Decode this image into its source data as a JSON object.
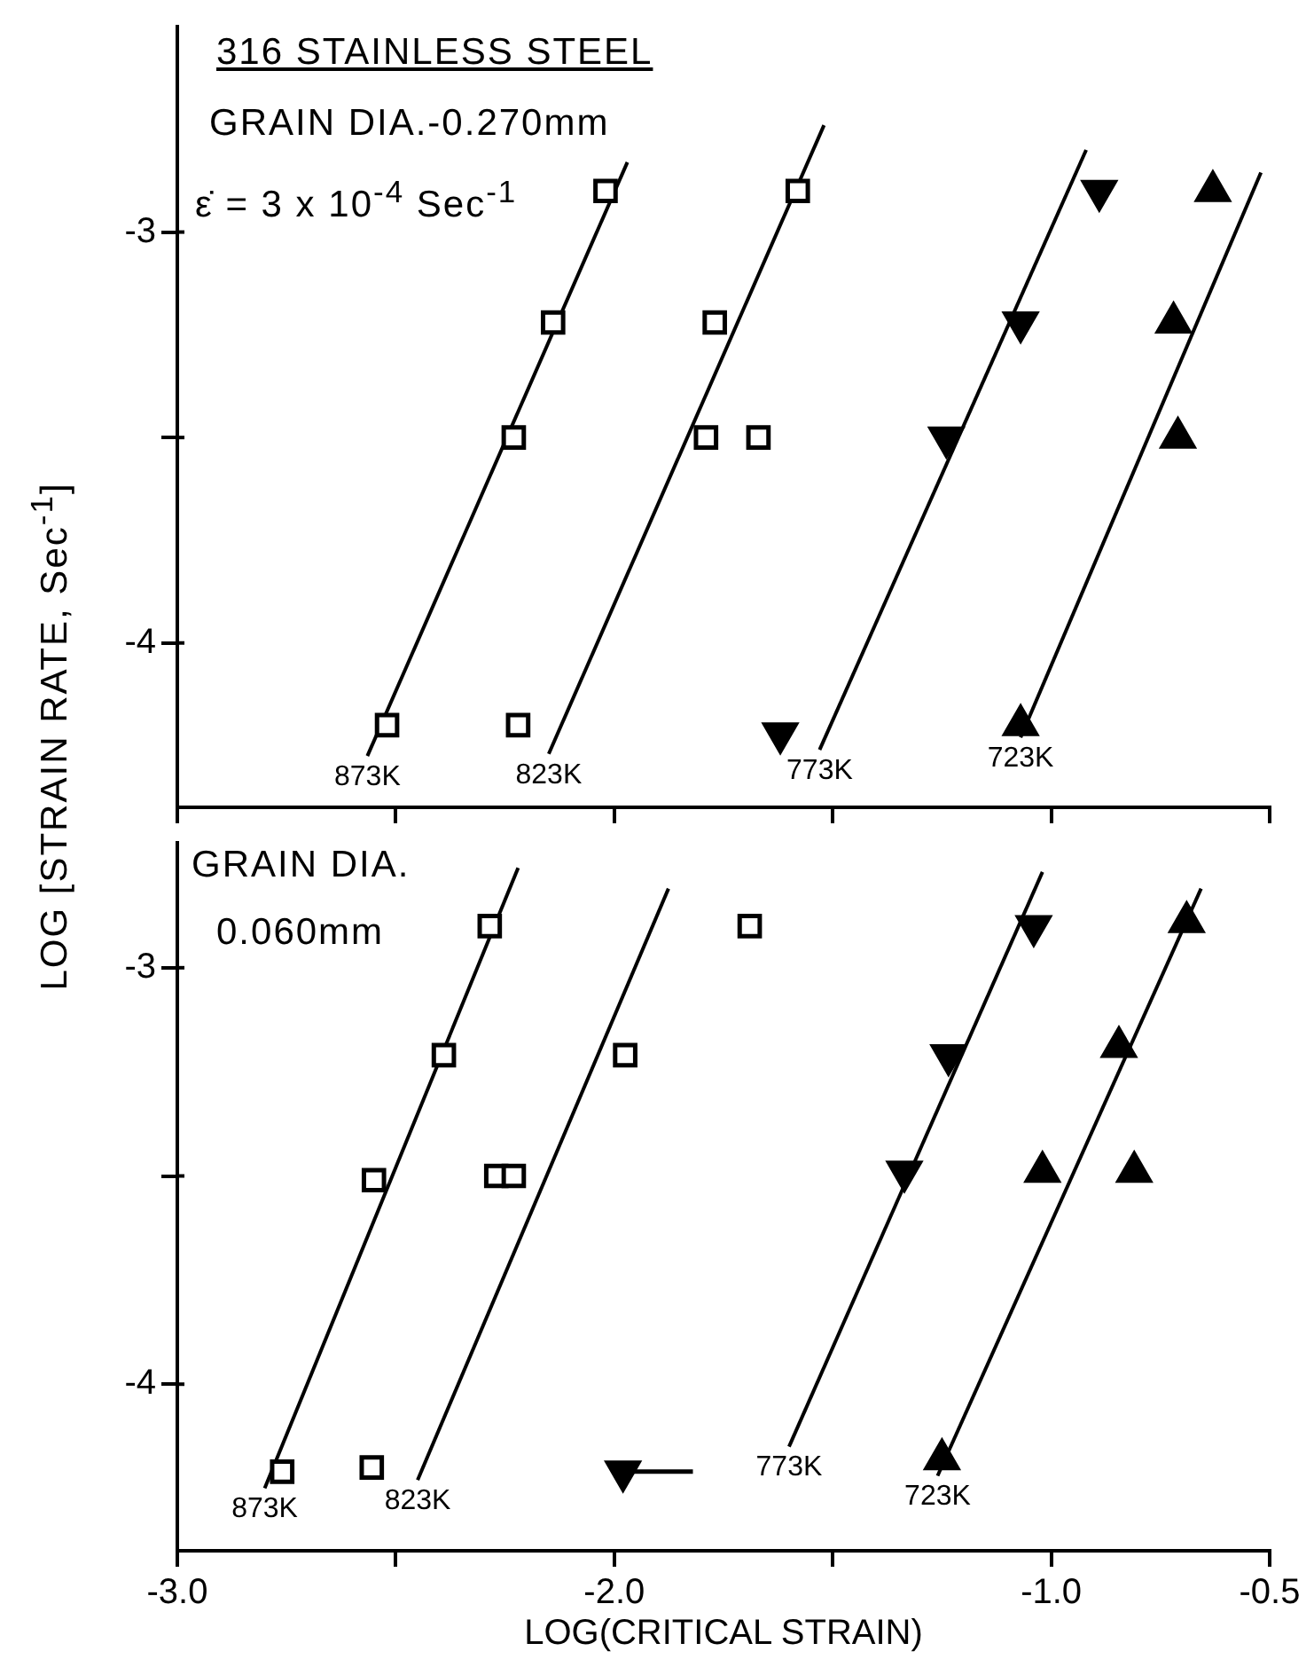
{
  "chart_data": [
    {
      "type": "scatter",
      "title": "316 STAINLESS STEEL",
      "annotations": [
        "GRAIN DIA.-0.270mm",
        "ε̇ = 3 x 10$^{-4}$ Sec$^{-1}$"
      ],
      "xlim": [
        -3.0,
        -0.5
      ],
      "xticks": [
        {
          "value": -3.0,
          "label": null
        },
        {
          "value": -2.5,
          "label": null
        },
        {
          "value": -2.0,
          "label": null
        },
        {
          "value": -1.5,
          "label": null
        },
        {
          "value": -1.0,
          "label": null
        },
        {
          "value": -0.5,
          "label": null
        }
      ],
      "ylim": [
        -4.4,
        -2.5
      ],
      "yticks": [
        {
          "value": -3,
          "label": "-3"
        },
        {
          "value": -3.5,
          "label": null
        },
        {
          "value": -4,
          "label": "-4"
        }
      ],
      "tick_labels": "y",
      "legend": false,
      "grid": false,
      "series": [
        {
          "type": "scatter",
          "color": "#000000",
          "marker": "square",
          "x": [
            -2.02,
            -2.14,
            -2.23,
            -2.52
          ],
          "values": [
            -2.9,
            -3.22,
            -3.5,
            -4.2
          ]
        },
        {
          "type": "scatter",
          "color": "#000000",
          "marker": "square",
          "x": [
            -1.58,
            -1.77,
            -1.79,
            -1.67,
            -2.22
          ],
          "values": [
            -2.9,
            -3.22,
            -3.5,
            -3.5,
            -4.2
          ]
        },
        {
          "type": "scatter",
          "color": "#000000",
          "marker": "triangle-down",
          "x": [
            -0.89,
            -1.07,
            -1.24,
            -1.62
          ],
          "values": [
            -2.9,
            -3.22,
            -3.5,
            -4.22
          ]
        },
        {
          "type": "scatter",
          "color": "#000000",
          "marker": "triangle",
          "x": [
            -0.63,
            -0.72,
            -0.71,
            -1.07
          ],
          "values": [
            -2.9,
            -3.22,
            -3.5,
            -4.2
          ]
        },
        {
          "type": "line",
          "name": "873K",
          "color": "#000000",
          "marker": "none",
          "x": [
            -2.565,
            -1.97
          ],
          "values": [
            -4.275,
            -2.83
          ]
        },
        {
          "type": "line",
          "name": "823K",
          "color": "#000000",
          "marker": "none",
          "x": [
            -2.15,
            -1.52
          ],
          "values": [
            -4.27,
            -2.74
          ]
        },
        {
          "type": "line",
          "name": "773K",
          "color": "#000000",
          "marker": "none",
          "x": [
            -1.53,
            -0.92
          ],
          "values": [
            -4.26,
            -2.8
          ]
        },
        {
          "type": "line",
          "name": "723K",
          "color": "#000000",
          "marker": "none",
          "x": [
            -1.07,
            -0.52
          ],
          "values": [
            -4.23,
            -2.855
          ]
        }
      ]
    },
    {
      "type": "scatter",
      "xlabel": "LOG(CRITICAL STRAIN)",
      "ylabel": "LOG [STRAIN RATE, Sec$^{-1}$]",
      "annotations": [
        "GRAIN DIA.",
        "0.060mm"
      ],
      "xlim": [
        -3.0,
        -0.5
      ],
      "xticks": [
        {
          "value": -3.0,
          "label": "-3.0"
        },
        {
          "value": -2.5,
          "label": null
        },
        {
          "value": -2.0,
          "label": "-2.0"
        },
        {
          "value": -1.5,
          "label": null
        },
        {
          "value": -1.0,
          "label": "-1.0"
        },
        {
          "value": -0.5,
          "label": "-0.5"
        }
      ],
      "ylim": [
        -4.4,
        -2.7
      ],
      "yticks": [
        {
          "value": -3,
          "label": "-3"
        },
        {
          "value": -3.5,
          "label": null
        },
        {
          "value": -4,
          "label": "-4"
        }
      ],
      "legend": false,
      "grid": false,
      "series": [
        {
          "type": "scatter",
          "color": "#000000",
          "marker": "square",
          "x": [
            -2.285,
            -2.39,
            -2.55,
            -2.76
          ],
          "values": [
            -2.9,
            -3.21,
            -3.51,
            -4.21
          ]
        },
        {
          "type": "scatter",
          "color": "#000000",
          "marker": "square",
          "x": [
            -1.69,
            -1.975,
            -2.27,
            -2.23,
            -2.555
          ],
          "values": [
            -2.9,
            -3.21,
            -3.5,
            -3.5,
            -4.2
          ]
        },
        {
          "type": "scatter",
          "color": "#000000",
          "marker": "triangle-down",
          "x": [
            -1.04,
            -1.235,
            -1.336,
            -1.98
          ],
          "values": [
            -2.9,
            -3.21,
            -3.49,
            -4.21
          ],
          "xerrors": [
            null,
            null,
            null,
            [
              -1.98,
              -1.82
            ]
          ]
        },
        {
          "type": "scatter",
          "color": "#000000",
          "marker": "triangle",
          "x": [
            -0.69,
            -0.845,
            -1.02,
            -0.81,
            -1.25
          ],
          "values": [
            -2.89,
            -3.19,
            -3.49,
            -3.49,
            -4.18
          ]
        },
        {
          "type": "line",
          "name": "873K",
          "color": "#000000",
          "marker": "none",
          "x": [
            -2.8,
            -2.22
          ],
          "values": [
            -4.25,
            -2.76
          ]
        },
        {
          "type": "line",
          "name": "823K",
          "color": "#000000",
          "marker": "none",
          "x": [
            -2.45,
            -1.876
          ],
          "values": [
            -4.23,
            -2.81
          ]
        },
        {
          "type": "line",
          "name": "773K",
          "color": "#000000",
          "marker": "none",
          "x": [
            -1.6,
            -1.02
          ],
          "values": [
            -4.15,
            -2.77
          ]
        },
        {
          "type": "line",
          "name": "723K",
          "color": "#000000",
          "marker": "none",
          "x": [
            -1.26,
            -0.657
          ],
          "values": [
            -4.22,
            -2.81
          ]
        }
      ]
    }
  ]
}
